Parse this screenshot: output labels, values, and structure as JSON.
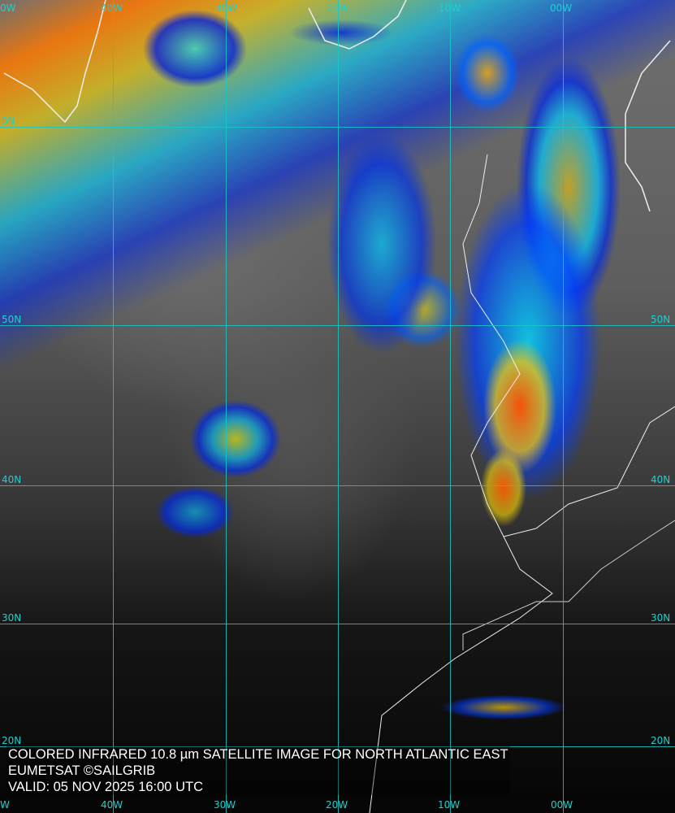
{
  "caption": {
    "line1": "COLORED INFRARED 10.8 µm SATELLITE IMAGE FOR NORTH ATLANTIC EAST",
    "line2": "EUMETSAT ©SAILGRIB",
    "line3": "VALID:  05 NOV 2025 16:00 UTC"
  },
  "grid": {
    "color": "#19c8c8",
    "top_labels": [
      "0W",
      "40W",
      "30W",
      "20W",
      "10W",
      "00W"
    ],
    "bottom_labels": [
      "W",
      "40W",
      "30W",
      "20W",
      "10W",
      "00W"
    ],
    "left_labels": [
      "0N",
      "50N",
      "40N",
      "30N",
      "20N"
    ],
    "right_labels": [
      "50N",
      "40N",
      "30N",
      "20N"
    ]
  },
  "imagery": {
    "type": "colored infrared satellite",
    "palette": [
      "#0020d0",
      "#00c8ff",
      "#ffff00",
      "#ff8000",
      "#ff2000"
    ]
  }
}
